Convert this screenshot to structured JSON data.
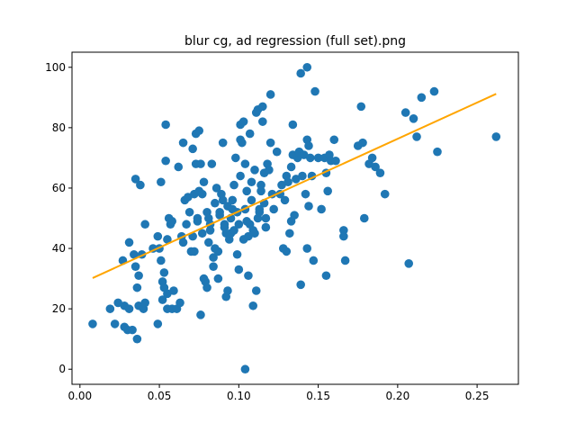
{
  "chart_data": {
    "type": "scatter",
    "title": "blur cg, ad regression (full set).png",
    "xlabel": "",
    "ylabel": "",
    "xlim": [
      -0.005,
      0.276
    ],
    "ylim": [
      -5,
      105
    ],
    "xticks": [
      0.0,
      0.05,
      0.1,
      0.15,
      0.2,
      0.25
    ],
    "xtick_labels": [
      "0.00",
      "0.05",
      "0.10",
      "0.15",
      "0.20",
      "0.25"
    ],
    "yticks": [
      0,
      20,
      40,
      60,
      80,
      100
    ],
    "ytick_labels": [
      "0",
      "20",
      "40",
      "60",
      "80",
      "100"
    ],
    "grid": false,
    "colors": {
      "points": "#1f77b4",
      "fit": "#ffa500"
    },
    "series": [
      {
        "points": [
          [
            0.008,
            15
          ],
          [
            0.019,
            20
          ],
          [
            0.022,
            15
          ],
          [
            0.024,
            22
          ],
          [
            0.027,
            36
          ],
          [
            0.028,
            14
          ],
          [
            0.028,
            21
          ],
          [
            0.03,
            13
          ],
          [
            0.031,
            42
          ],
          [
            0.031,
            20
          ],
          [
            0.033,
            13
          ],
          [
            0.034,
            38
          ],
          [
            0.035,
            63
          ],
          [
            0.035,
            34
          ],
          [
            0.036,
            10
          ],
          [
            0.036,
            27
          ],
          [
            0.037,
            31
          ],
          [
            0.037,
            21
          ],
          [
            0.038,
            61
          ],
          [
            0.039,
            38
          ],
          [
            0.04,
            20
          ],
          [
            0.041,
            48
          ],
          [
            0.041,
            22
          ],
          [
            0.046,
            40
          ],
          [
            0.049,
            15
          ],
          [
            0.049,
            44
          ],
          [
            0.05,
            40
          ],
          [
            0.051,
            62
          ],
          [
            0.051,
            36
          ],
          [
            0.052,
            29
          ],
          [
            0.052,
            23
          ],
          [
            0.053,
            32
          ],
          [
            0.053,
            27
          ],
          [
            0.054,
            69
          ],
          [
            0.054,
            81
          ],
          [
            0.055,
            25
          ],
          [
            0.055,
            20
          ],
          [
            0.055,
            43
          ],
          [
            0.056,
            50
          ],
          [
            0.057,
            48
          ],
          [
            0.058,
            49
          ],
          [
            0.058,
            20
          ],
          [
            0.059,
            26
          ],
          [
            0.061,
            20
          ],
          [
            0.062,
            67
          ],
          [
            0.063,
            22
          ],
          [
            0.064,
            44
          ],
          [
            0.065,
            75
          ],
          [
            0.065,
            42
          ],
          [
            0.066,
            56
          ],
          [
            0.067,
            48
          ],
          [
            0.068,
            57
          ],
          [
            0.069,
            52
          ],
          [
            0.07,
            39
          ],
          [
            0.071,
            44
          ],
          [
            0.071,
            73
          ],
          [
            0.072,
            58
          ],
          [
            0.072,
            39
          ],
          [
            0.073,
            68
          ],
          [
            0.073,
            78
          ],
          [
            0.074,
            50
          ],
          [
            0.074,
            49
          ],
          [
            0.075,
            59
          ],
          [
            0.075,
            79
          ],
          [
            0.076,
            68
          ],
          [
            0.076,
            18
          ],
          [
            0.077,
            58
          ],
          [
            0.077,
            45
          ],
          [
            0.078,
            30
          ],
          [
            0.078,
            62
          ],
          [
            0.079,
            29
          ],
          [
            0.08,
            27
          ],
          [
            0.08,
            52
          ],
          [
            0.081,
            50
          ],
          [
            0.081,
            42
          ],
          [
            0.082,
            46
          ],
          [
            0.082,
            48
          ],
          [
            0.083,
            68
          ],
          [
            0.084,
            34
          ],
          [
            0.084,
            37
          ],
          [
            0.085,
            40
          ],
          [
            0.085,
            55
          ],
          [
            0.086,
            60
          ],
          [
            0.087,
            39
          ],
          [
            0.087,
            30
          ],
          [
            0.088,
            52
          ],
          [
            0.088,
            51
          ],
          [
            0.089,
            58
          ],
          [
            0.09,
            75
          ],
          [
            0.09,
            56
          ],
          [
            0.091,
            47
          ],
          [
            0.091,
            48
          ],
          [
            0.092,
            24
          ],
          [
            0.092,
            45
          ],
          [
            0.093,
            54
          ],
          [
            0.093,
            26
          ],
          [
            0.094,
            43
          ],
          [
            0.095,
            45
          ],
          [
            0.095,
            50
          ],
          [
            0.096,
            53
          ],
          [
            0.096,
            56
          ],
          [
            0.097,
            61
          ],
          [
            0.097,
            46
          ],
          [
            0.098,
            70
          ],
          [
            0.099,
            52
          ],
          [
            0.099,
            38
          ],
          [
            0.1,
            33
          ],
          [
            0.1,
            48
          ],
          [
            0.101,
            64
          ],
          [
            0.101,
            76
          ],
          [
            0.101,
            81
          ],
          [
            0.102,
            75
          ],
          [
            0.103,
            82
          ],
          [
            0.103,
            43
          ],
          [
            0.104,
            0
          ],
          [
            0.104,
            68
          ],
          [
            0.104,
            53
          ],
          [
            0.105,
            49
          ],
          [
            0.105,
            59
          ],
          [
            0.106,
            31
          ],
          [
            0.106,
            44
          ],
          [
            0.107,
            78
          ],
          [
            0.107,
            48
          ],
          [
            0.108,
            62
          ],
          [
            0.108,
            56
          ],
          [
            0.109,
            46
          ],
          [
            0.109,
            21
          ],
          [
            0.11,
            45
          ],
          [
            0.11,
            66
          ],
          [
            0.111,
            26
          ],
          [
            0.111,
            85
          ],
          [
            0.112,
            86
          ],
          [
            0.112,
            50
          ],
          [
            0.113,
            52
          ],
          [
            0.113,
            53
          ],
          [
            0.114,
            59
          ],
          [
            0.114,
            61
          ],
          [
            0.115,
            82
          ],
          [
            0.115,
            87
          ],
          [
            0.116,
            65
          ],
          [
            0.116,
            55
          ],
          [
            0.117,
            47
          ],
          [
            0.117,
            50
          ],
          [
            0.118,
            68
          ],
          [
            0.119,
            66
          ],
          [
            0.12,
            75
          ],
          [
            0.12,
            91
          ],
          [
            0.121,
            58
          ],
          [
            0.122,
            53
          ],
          [
            0.124,
            72
          ],
          [
            0.126,
            58
          ],
          [
            0.127,
            61
          ],
          [
            0.128,
            40
          ],
          [
            0.129,
            56
          ],
          [
            0.13,
            39
          ],
          [
            0.13,
            64
          ],
          [
            0.131,
            62
          ],
          [
            0.132,
            45
          ],
          [
            0.133,
            49
          ],
          [
            0.133,
            67
          ],
          [
            0.134,
            71
          ],
          [
            0.134,
            81
          ],
          [
            0.135,
            51
          ],
          [
            0.136,
            63
          ],
          [
            0.137,
            70
          ],
          [
            0.138,
            72
          ],
          [
            0.139,
            28
          ],
          [
            0.139,
            98
          ],
          [
            0.14,
            64
          ],
          [
            0.141,
            71
          ],
          [
            0.142,
            58
          ],
          [
            0.143,
            100
          ],
          [
            0.143,
            76
          ],
          [
            0.143,
            40
          ],
          [
            0.144,
            54
          ],
          [
            0.144,
            74
          ],
          [
            0.145,
            70
          ],
          [
            0.146,
            64
          ],
          [
            0.147,
            36
          ],
          [
            0.148,
            92
          ],
          [
            0.15,
            70
          ],
          [
            0.152,
            53
          ],
          [
            0.154,
            70
          ],
          [
            0.155,
            31
          ],
          [
            0.155,
            65
          ],
          [
            0.156,
            59
          ],
          [
            0.157,
            71
          ],
          [
            0.158,
            69
          ],
          [
            0.16,
            76
          ],
          [
            0.161,
            69
          ],
          [
            0.166,
            46
          ],
          [
            0.166,
            44
          ],
          [
            0.167,
            36
          ],
          [
            0.175,
            74
          ],
          [
            0.177,
            87
          ],
          [
            0.178,
            75
          ],
          [
            0.179,
            50
          ],
          [
            0.182,
            68
          ],
          [
            0.184,
            70
          ],
          [
            0.186,
            67
          ],
          [
            0.189,
            65
          ],
          [
            0.192,
            58
          ],
          [
            0.205,
            85
          ],
          [
            0.207,
            35
          ],
          [
            0.21,
            83
          ],
          [
            0.212,
            77
          ],
          [
            0.215,
            90
          ],
          [
            0.223,
            92
          ],
          [
            0.225,
            72
          ],
          [
            0.262,
            77
          ]
        ]
      }
    ],
    "fit_line": {
      "x": [
        0.008,
        0.262
      ],
      "y": [
        30.2,
        91.2
      ]
    }
  }
}
